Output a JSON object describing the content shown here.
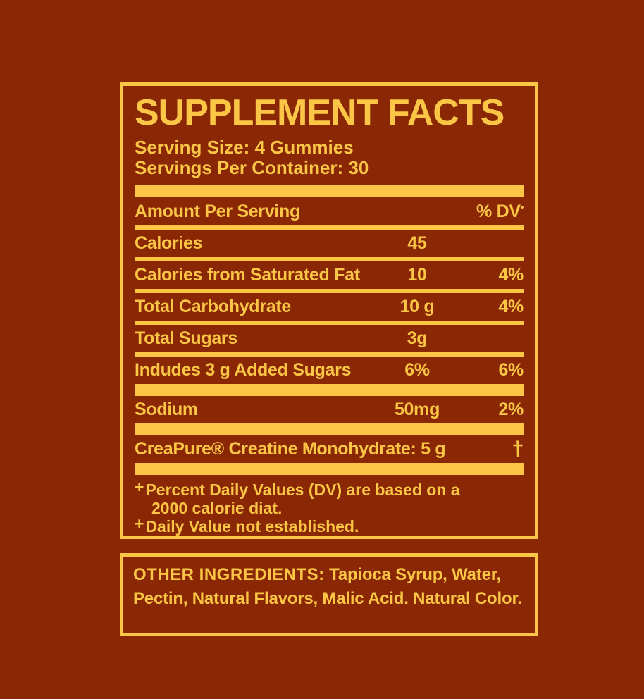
{
  "colors": {
    "background": "#8A2704",
    "gold": "#FBC646"
  },
  "panel": {
    "title": "SUPPLEMENT FACTS",
    "serving_size": "Serving Size: 4 Gummies",
    "servings_per_container": "Servings Per Container: 30",
    "columns": {
      "amount_header": "Amount Per Serving",
      "dv_header": "% DV",
      "dv_header_mark": "•"
    },
    "rows": [
      {
        "name": "Calories",
        "amount": "45",
        "dv": ""
      },
      {
        "name": "Calories from Saturated Fat",
        "amount": "10",
        "dv": "4%"
      },
      {
        "name": "Total Carbohydrate",
        "amount": "10 g",
        "dv": "4%"
      },
      {
        "name": "Total Sugars",
        "amount": "3g",
        "dv": ""
      },
      {
        "name": "Indudes 3 g Added Sugars",
        "amount": "6%",
        "dv": "6%"
      },
      {
        "name": "Sodium",
        "amount": "50mg",
        "dv": "2%"
      },
      {
        "name": "CreaPure® Creatine Monohydrate: 5 g",
        "dv": "†"
      }
    ],
    "footnotes": {
      "dv_note_mark": "+",
      "dv_note": "Percent Daily Values (DV) are based on a 2000 calorie diat.",
      "est_note_mark": "+",
      "est_note": "Daily Value not established."
    }
  },
  "other_ingredients_panel": {
    "heading": "OTHER INGREDIENTS:",
    "text": " Tapioca Syrup, Water, Pectin, Natural Flavors, Malic Acid. Natural Color."
  }
}
